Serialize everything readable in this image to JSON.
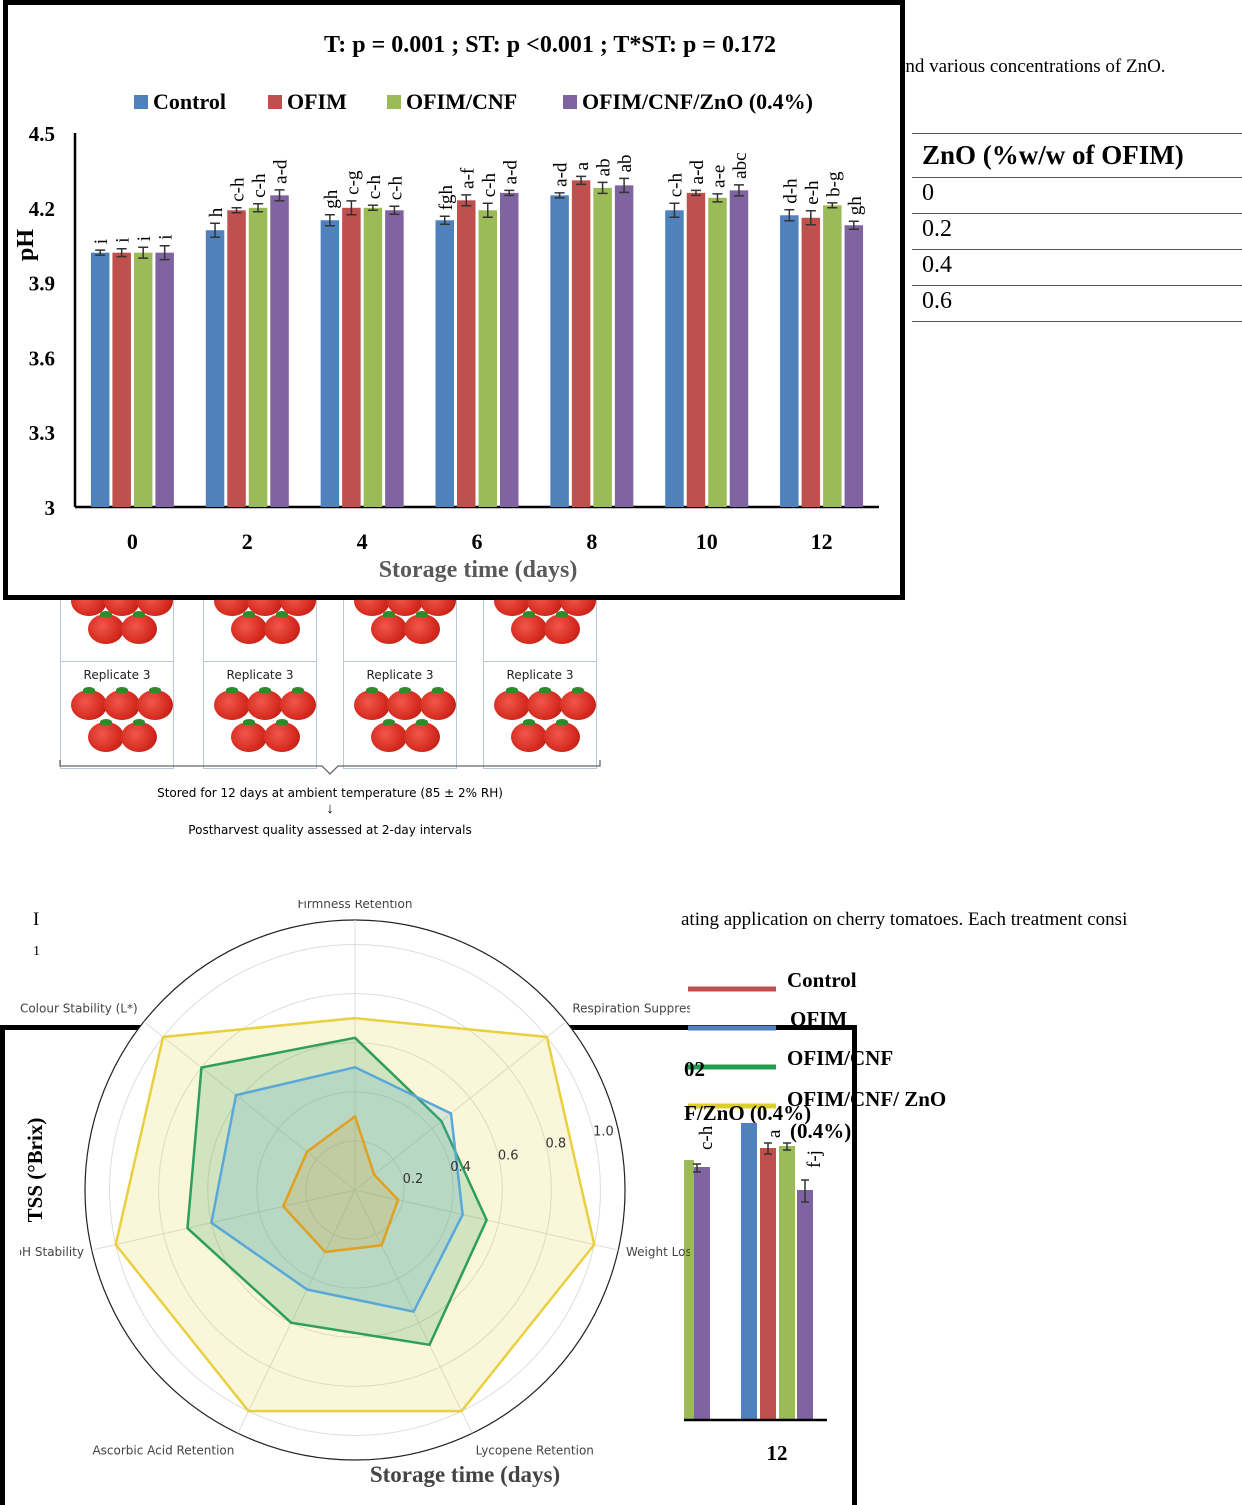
{
  "document": {
    "line_top": "and various concentrations of ZnO.",
    "line_mid": "ating application on cherry tomatoes. Each treatment consi",
    "table": {
      "header": "ZnO (%w/w of OFIM)",
      "rows": [
        "0",
        "0.2",
        "0.4",
        "0.6"
      ]
    },
    "stored_text": "Stored for 12 days at ambient temperature (85 ± 2% RH)",
    "assessed_text": "Postharvest quality assessed at 2-day intervals",
    "replicate_label": "Replicate 3",
    "partial_left_1": "I",
    "partial_left_2": "1"
  },
  "chart_data": [
    {
      "type": "bar",
      "title": "T: p = 0.001 ; ST: p <0.001 ; T*ST: p = 0.172",
      "xlabel": "Storage time (days)",
      "ylabel": "pH",
      "ylim": [
        3,
        4.5
      ],
      "yticks": [
        "3",
        "3.3",
        "3.6",
        "3.9",
        "4.2",
        "4.5"
      ],
      "categories": [
        "0",
        "2",
        "4",
        "6",
        "8",
        "10",
        "12"
      ],
      "series": [
        {
          "name": "Control",
          "color": "#4f81bd",
          "values": [
            4.02,
            4.11,
            4.15,
            4.15,
            4.25,
            4.19,
            4.17
          ],
          "letters": [
            "i",
            "h",
            "gh",
            "fgh",
            "a-d",
            "c-h",
            "d-h"
          ]
        },
        {
          "name": "OFIM",
          "color": "#c0504d",
          "values": [
            4.02,
            4.19,
            4.2,
            4.23,
            4.31,
            4.26,
            4.16
          ],
          "letters": [
            "i",
            "c-h",
            "c-g",
            "a-f",
            "a",
            "a-d",
            "e-h"
          ]
        },
        {
          "name": "OFIM/CNF",
          "color": "#9bbb59",
          "values": [
            4.02,
            4.2,
            4.2,
            4.19,
            4.28,
            4.24,
            4.21
          ],
          "letters": [
            "i",
            "c-h",
            "c-h",
            "c-h",
            "ab",
            "a-e",
            "b-g"
          ]
        },
        {
          "name": "OFIM/CNF/ZnO (0.4%)",
          "color": "#8064a2",
          "values": [
            4.02,
            4.25,
            4.19,
            4.26,
            4.29,
            4.27,
            4.13
          ],
          "letters": [
            "i",
            "a-d",
            "c-h",
            "a-d",
            "ab",
            "abc",
            "gh"
          ]
        }
      ],
      "grid": false,
      "legend": "top"
    },
    {
      "type": "radar",
      "axes": [
        "Firmness Retention",
        "Respiration Suppression",
        "Weight Loss Control",
        "Lycopene Retention",
        "Ascorbic Acid Retention",
        "pH Stability",
        "Colour Stability (L*)"
      ],
      "rticks": [
        "0.2",
        "0.4",
        "0.6",
        "0.8",
        "1.0"
      ],
      "series": [
        {
          "color": "#e0a020",
          "values": [
            0.3,
            0.1,
            0.18,
            0.25,
            0.28,
            0.3,
            0.25
          ]
        },
        {
          "color": "#5aa8d8",
          "values": [
            0.5,
            0.5,
            0.45,
            0.55,
            0.45,
            0.6,
            0.62
          ]
        },
        {
          "color": "#2e9e60",
          "values": [
            0.62,
            0.45,
            0.55,
            0.7,
            0.6,
            0.7,
            0.8
          ]
        },
        {
          "color": "#e8d040",
          "values": [
            0.7,
            1.0,
            1.0,
            1.0,
            1.0,
            1.0,
            1.0
          ]
        }
      ]
    },
    {
      "type": "bar",
      "title_fragment": "02",
      "ylabel": "TSS (°Brix)",
      "xlabel": "Storage time (days)",
      "categories": [
        "12"
      ],
      "legend_items": [
        {
          "label": "Control",
          "color": "#c0504d"
        },
        {
          "label": "OFIM",
          "color": "#4f81bd"
        },
        {
          "label": "OFIM/CNF",
          "color": "#1fa050"
        },
        {
          "label": "OFIM/CNF/ ZnO",
          "color": "#dccf2a"
        },
        {
          "label": "(0.4%)",
          "color": ""
        }
      ],
      "overlap_legend_text": "F/ZnO (0.4%)",
      "letters_visible": [
        "c-h",
        "a",
        "f-j"
      ]
    }
  ]
}
